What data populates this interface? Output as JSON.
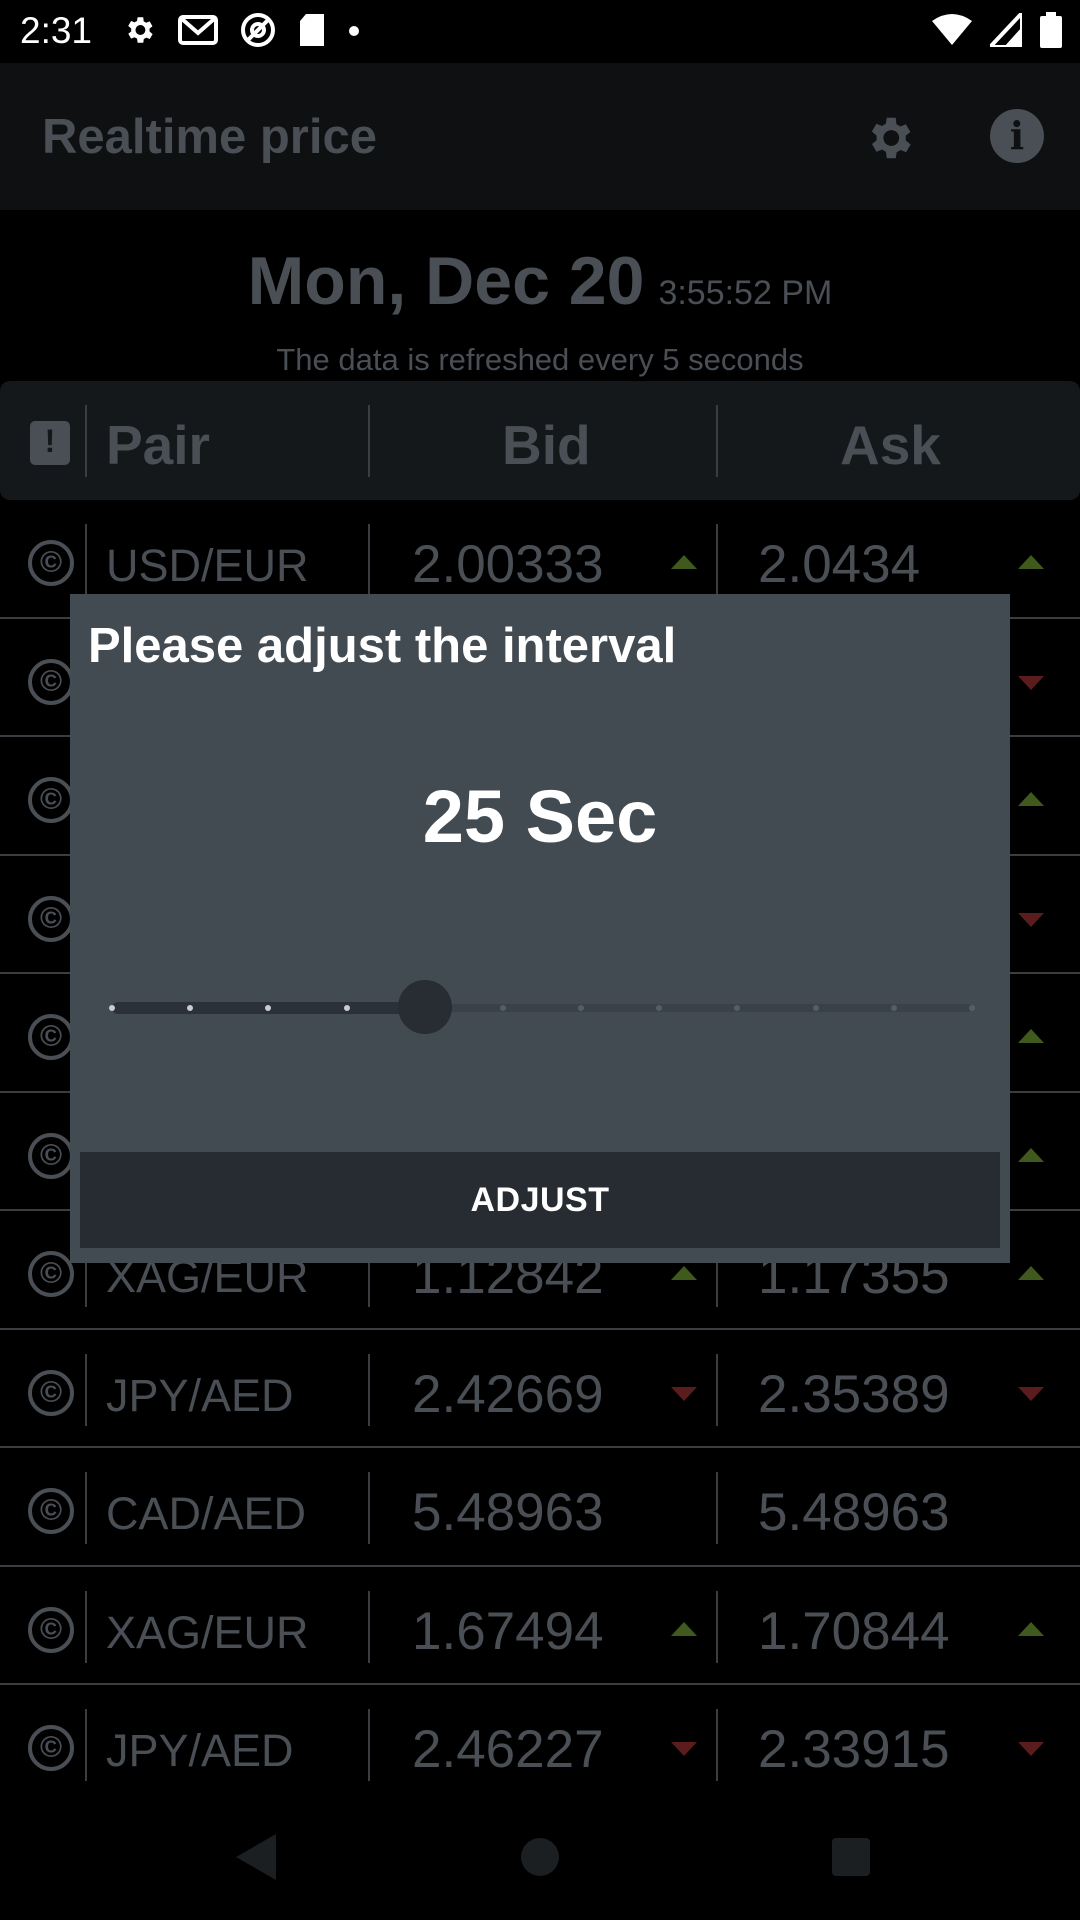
{
  "status_bar": {
    "time": "2:31",
    "icons": [
      "gear-icon",
      "gmail-icon",
      "at-sign-icon",
      "sd-card-icon",
      "dot-icon",
      "wifi-icon",
      "signal-icon",
      "battery-icon"
    ]
  },
  "app_bar": {
    "title": "Realtime price",
    "settings_icon": "gear-icon",
    "info_icon": "info-icon",
    "info_glyph": "i"
  },
  "header": {
    "date": "Mon, Dec 20",
    "time": "3:55:52 PM",
    "refresh_note": "The data is refreshed every 5 seconds"
  },
  "table": {
    "columns": [
      "Pair",
      "Bid",
      "Ask"
    ],
    "copy_glyph": "©",
    "rows": [
      {
        "pair": "USD/EUR",
        "bid": "2.00333",
        "bid_trend": "up",
        "ask": "2.0434",
        "ask_trend": "up"
      },
      {
        "pair": "",
        "bid": "",
        "bid_trend": "none",
        "ask": "",
        "ask_trend": "down"
      },
      {
        "pair": "",
        "bid": "",
        "bid_trend": "none",
        "ask": "",
        "ask_trend": "up"
      },
      {
        "pair": "",
        "bid": "",
        "bid_trend": "none",
        "ask": "",
        "ask_trend": "down"
      },
      {
        "pair": "",
        "bid": "",
        "bid_trend": "none",
        "ask": "",
        "ask_trend": "up"
      },
      {
        "pair": "",
        "bid": "",
        "bid_trend": "none",
        "ask": "",
        "ask_trend": "up"
      },
      {
        "pair": "XAG/EUR",
        "bid": "1.12842",
        "bid_trend": "up",
        "ask": "1.17355",
        "ask_trend": "up"
      },
      {
        "pair": "JPY/AED",
        "bid": "2.42669",
        "bid_trend": "down",
        "ask": "2.35389",
        "ask_trend": "down"
      },
      {
        "pair": "CAD/AED",
        "bid": "5.48963",
        "bid_trend": "none",
        "ask": "5.48963",
        "ask_trend": "none"
      },
      {
        "pair": "XAG/EUR",
        "bid": "1.67494",
        "bid_trend": "up",
        "ask": "1.70844",
        "ask_trend": "up"
      },
      {
        "pair": "JPY/AED",
        "bid": "2.46227",
        "bid_trend": "down",
        "ask": "2.33915",
        "ask_trend": "down"
      }
    ]
  },
  "dialog": {
    "title": "Please adjust the interval",
    "value": "25 Sec",
    "slider": {
      "steps": 12,
      "selected_index": 4
    },
    "button_label": "ADJUST"
  },
  "colors": {
    "dialog_bg": "#424a52",
    "trend_up": "#3f5a1c",
    "trend_down": "#5a1c1c"
  }
}
